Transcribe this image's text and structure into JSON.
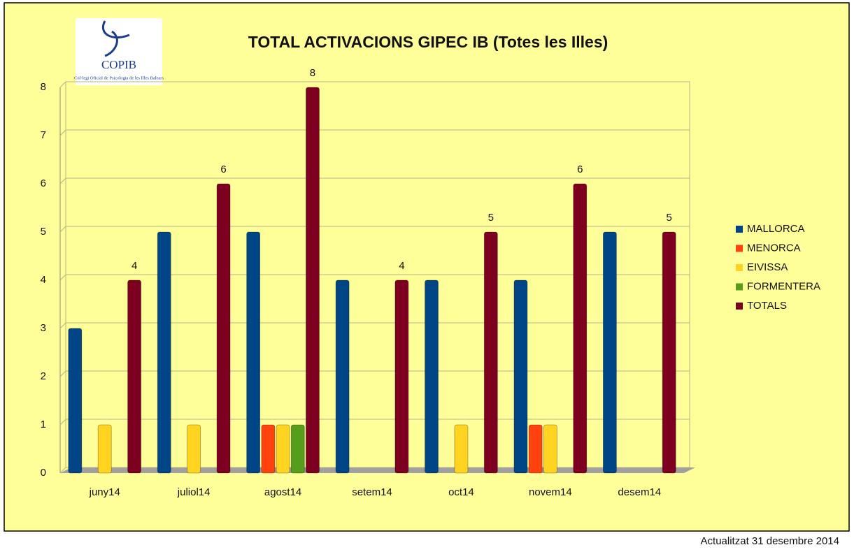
{
  "chart_data": {
    "type": "bar",
    "title": "TOTAL ACTIVACIONS GIPEC IB (Totes les Illes)",
    "logo": {
      "name": "COPIB",
      "subtitle": "Col·legi Oficial de Psicologia de les Illes Balears"
    },
    "footer": "Actualitzat 31 desembre 2014",
    "categories": [
      "juny14",
      "juliol14",
      "agost14",
      "setem14",
      "oct14",
      "novem14",
      "desem14"
    ],
    "series": [
      {
        "name": "MALLORCA",
        "color": "#004586",
        "values": [
          3,
          5,
          5,
          4,
          4,
          4,
          5
        ]
      },
      {
        "name": "MENORCA",
        "color": "#ff420e",
        "values": [
          0,
          0,
          1,
          0,
          0,
          1,
          0
        ]
      },
      {
        "name": "EIVISSA",
        "color": "#ffd320",
        "values": [
          1,
          1,
          1,
          0,
          1,
          1,
          0
        ]
      },
      {
        "name": "FORMENTERA",
        "color": "#579d1c",
        "values": [
          0,
          0,
          1,
          0,
          0,
          0,
          0
        ]
      },
      {
        "name": "TOTALS",
        "color": "#7e0021",
        "values": [
          4,
          6,
          8,
          4,
          5,
          6,
          5
        ],
        "show_value_labels": true
      }
    ],
    "ylim": [
      0,
      8
    ],
    "yticks": [
      0,
      1,
      2,
      3,
      4,
      5,
      6,
      7,
      8
    ],
    "grid": true,
    "legend": "right"
  }
}
